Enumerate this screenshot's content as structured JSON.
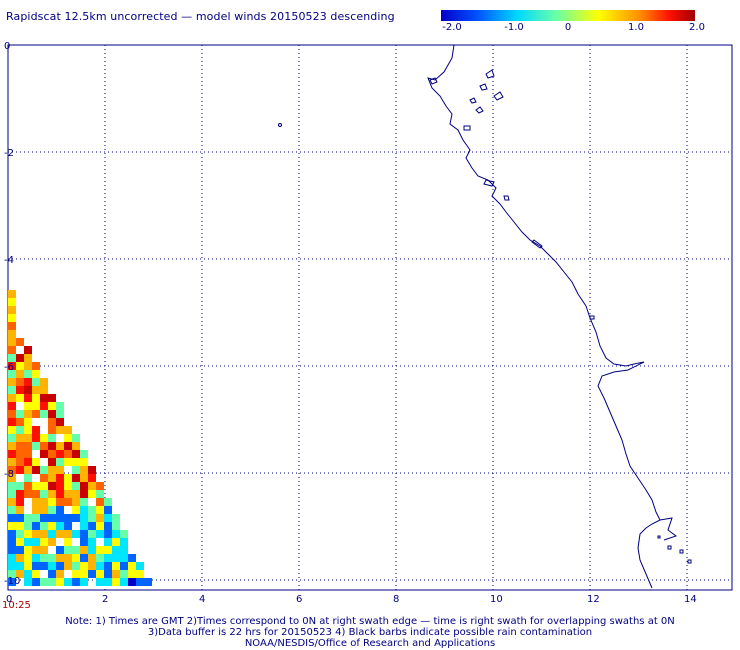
{
  "title": "Rapidscat 12.5km uncorrected — model winds 20150523 descending",
  "colorbar": {
    "labels": [
      "-2.0",
      "-1.0",
      "0",
      "1.0",
      "2.0"
    ],
    "values": [
      -2.0,
      -1.0,
      0,
      1.0,
      2.0
    ],
    "min": -2.0,
    "max": 2.0,
    "colors": [
      "#0000c8",
      "#0064ff",
      "#00e6ff",
      "#7dff7d",
      "#ffff00",
      "#ff9600",
      "#ff0000",
      "#a00000"
    ]
  },
  "axes": {
    "x_ticks": [
      "0",
      "2",
      "4",
      "6",
      "8",
      "10",
      "12",
      "14"
    ],
    "x_values": [
      0,
      2,
      4,
      6,
      8,
      10,
      12,
      14
    ],
    "y_ticks": [
      "0",
      "-2",
      "-4",
      "-6",
      "-8",
      "-10"
    ],
    "y_values": [
      0,
      -2,
      -4,
      -6,
      -8,
      -10
    ],
    "xlim": [
      0,
      15
    ],
    "ylim": [
      -10,
      0
    ],
    "grid": true
  },
  "time_label": "10:25",
  "notes": {
    "line1": "Note: 1) Times are GMT 2)Times correspond to 0N at right swath edge — time is right swath for overlapping swaths at 0N",
    "line2": "3)Data buffer is 22 hrs for 20150523 4) Black barbs indicate possible rain contamination",
    "line3": "NOAA/NESDIS/Office of Research and Applications"
  }
}
